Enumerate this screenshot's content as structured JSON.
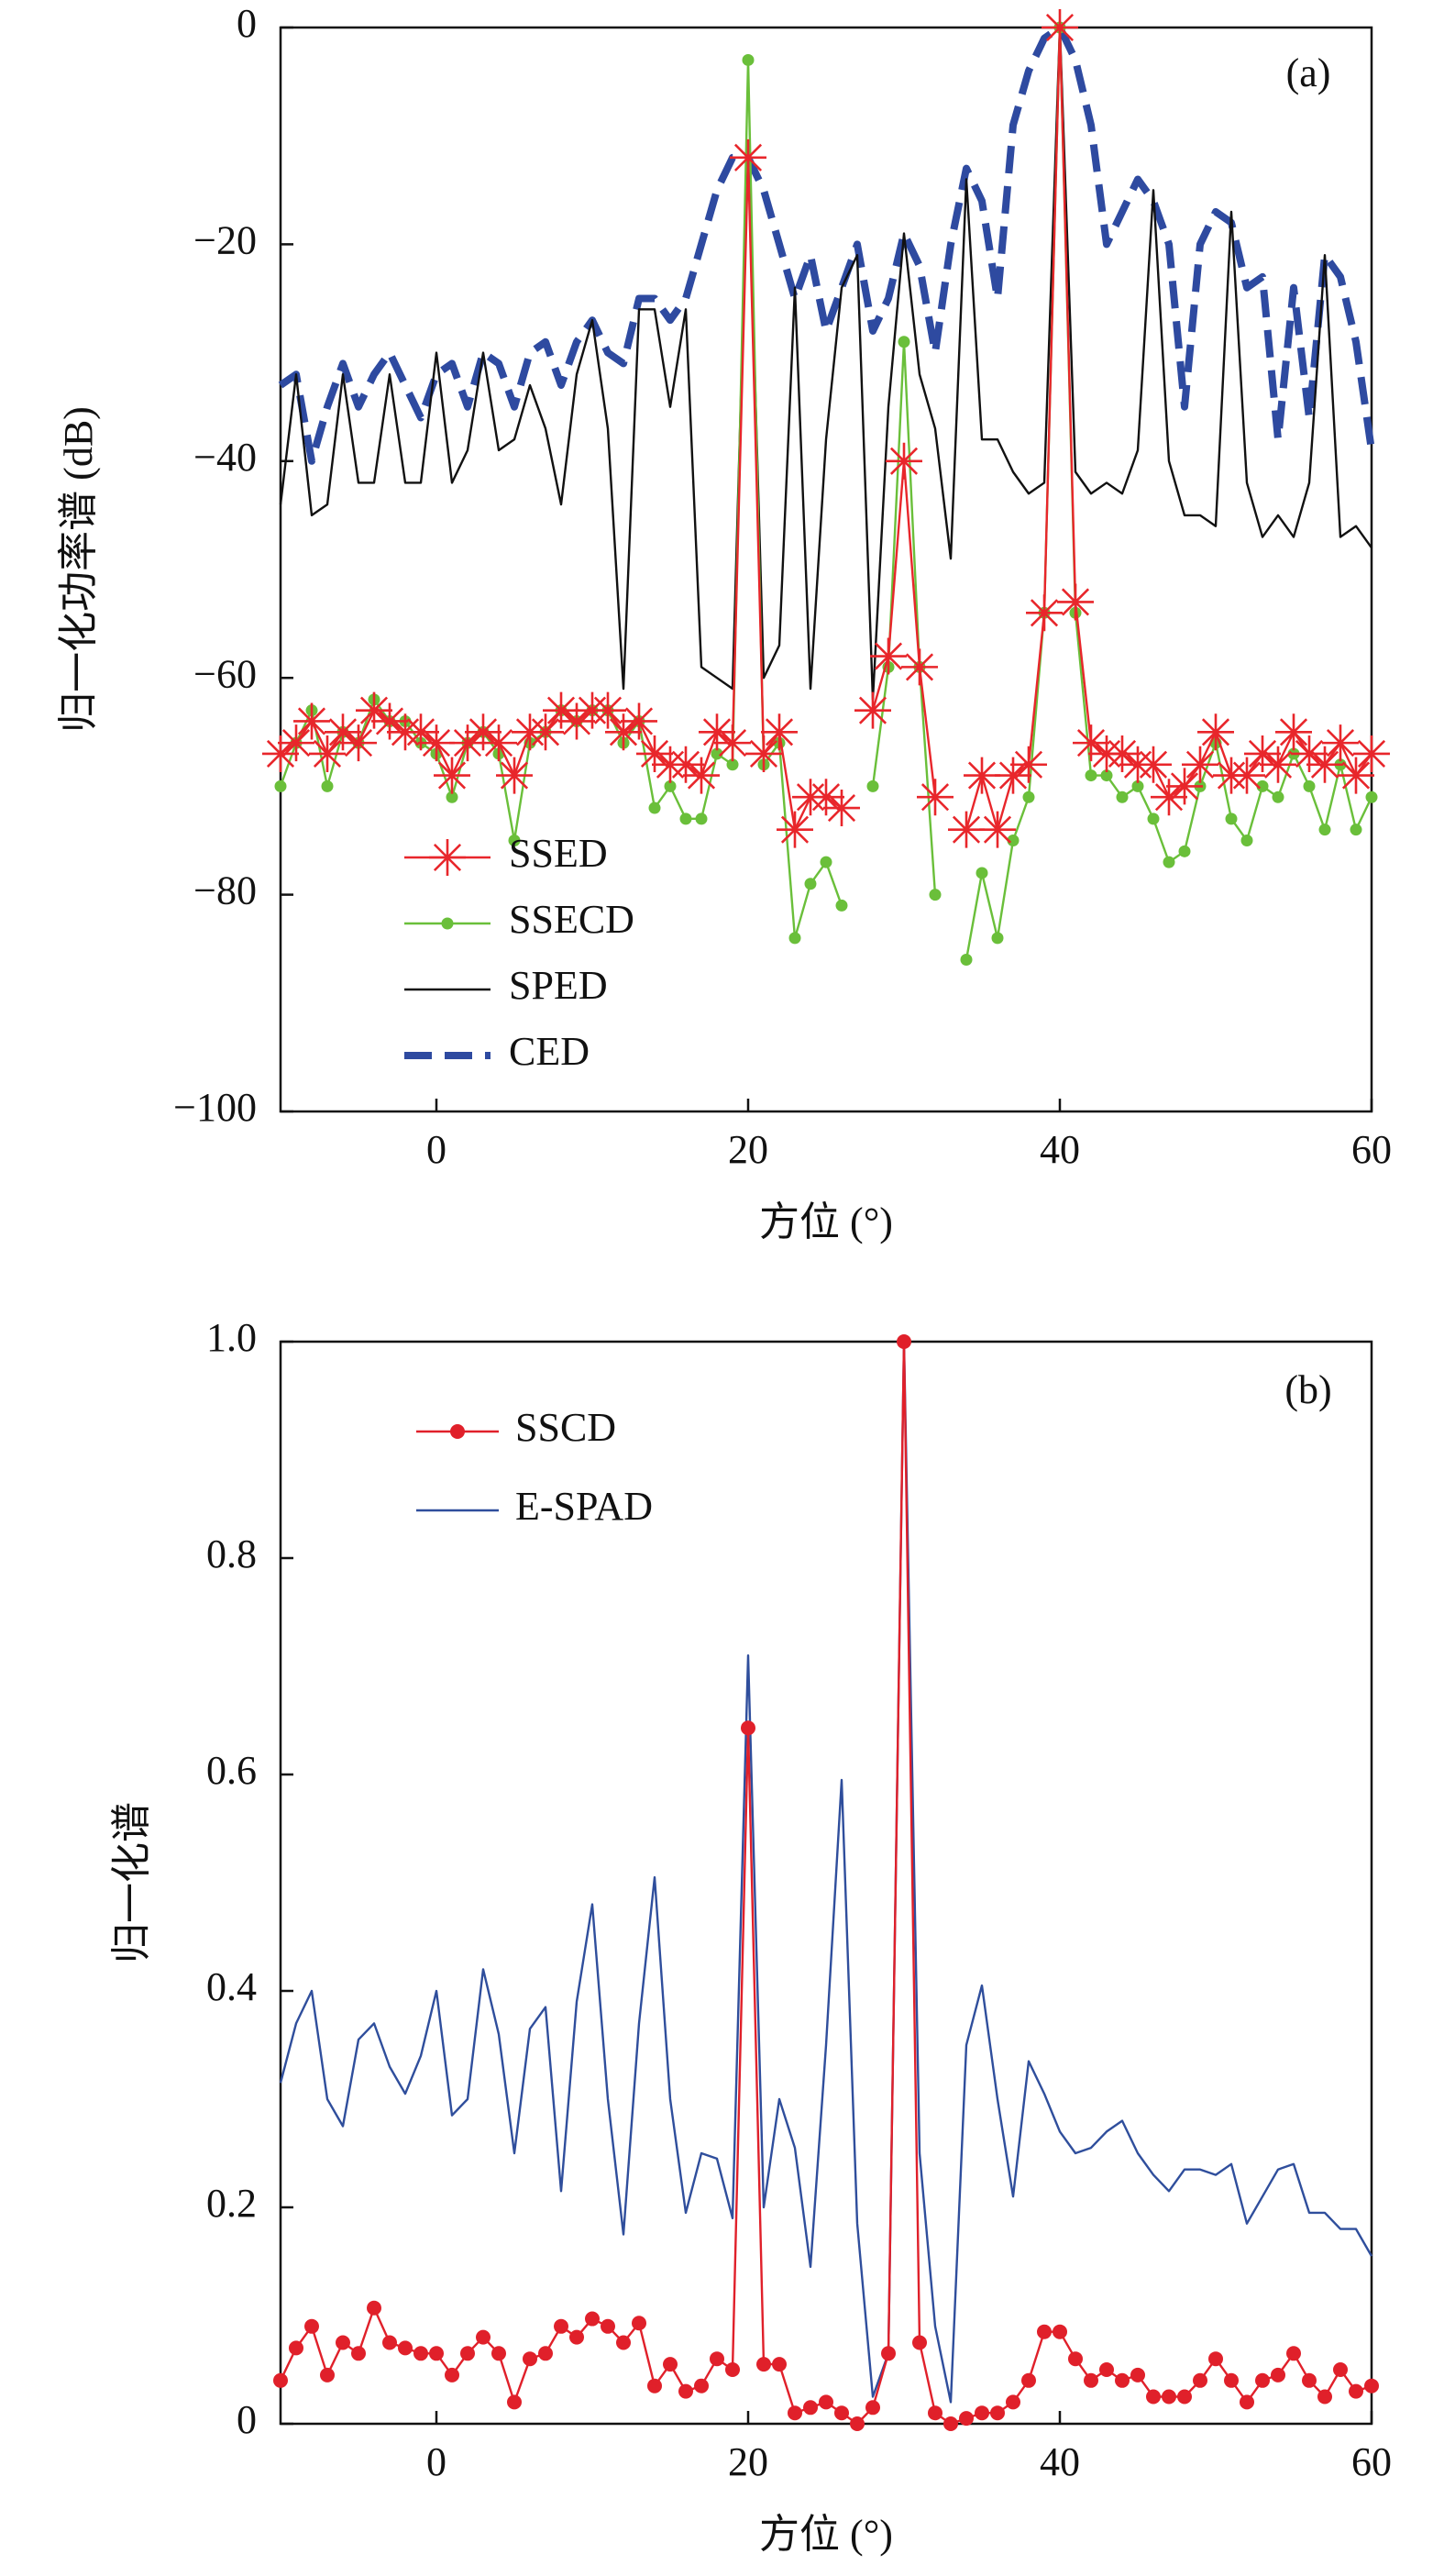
{
  "chart_data": [
    {
      "type": "line",
      "annotation": "(a)",
      "xlabel": "方位 (°)",
      "ylabel": "归一化功率谱 (dB)",
      "x": [
        -10,
        -9,
        -8,
        -7,
        -6,
        -5,
        -4,
        -3,
        -2,
        -1,
        0,
        1,
        2,
        3,
        4,
        5,
        6,
        7,
        8,
        9,
        10,
        11,
        12,
        13,
        14,
        15,
        16,
        17,
        18,
        19,
        20,
        21,
        22,
        23,
        24,
        25,
        26,
        27,
        28,
        29,
        30,
        31,
        32,
        33,
        34,
        35,
        36,
        37,
        38,
        39,
        40,
        41,
        42,
        43,
        44,
        45,
        46,
        47,
        48,
        49,
        50,
        51,
        52,
        53,
        54,
        55,
        56,
        57,
        58,
        59,
        60
      ],
      "xlim": [
        -10,
        60
      ],
      "xticks": [
        0,
        20,
        40,
        60
      ],
      "ylim": [
        -100,
        0
      ],
      "yticks": [
        {
          "value": -100,
          "label": "−100"
        },
        {
          "value": -80,
          "label": "−80"
        },
        {
          "value": -60,
          "label": "−60"
        },
        {
          "value": -40,
          "label": "−40"
        },
        {
          "value": -20,
          "label": "−20"
        },
        0
      ],
      "legend": "lower left",
      "series": [
        {
          "name": "SSED",
          "color": "#e8262b",
          "marker": "star",
          "linestyle": "solid",
          "values": [
            -67,
            -66,
            -64,
            -67,
            -65,
            -66,
            -63,
            -64,
            -65,
            -65,
            -66,
            -69,
            -66,
            -65,
            -66,
            -69,
            -65,
            -65,
            -63,
            -64,
            -63,
            -63,
            -65,
            -64,
            -67,
            -68,
            -68,
            -69,
            -65,
            -66,
            -12,
            -67,
            -65,
            -74,
            -71,
            -71,
            -72,
            null,
            -63,
            -58,
            -40,
            -59,
            -71,
            null,
            -74,
            -69,
            -74,
            -69,
            -68,
            -54,
            0,
            -53,
            -66,
            -67,
            -67,
            -68,
            -68,
            -71,
            -70,
            -68,
            -65,
            -69,
            -69,
            -67,
            -68,
            -65,
            -67,
            -68,
            -66,
            -69,
            -67
          ]
        },
        {
          "name": "SSECD",
          "color": "#6abf3a",
          "marker": "circle",
          "linestyle": "solid",
          "values": [
            -70,
            -66,
            -63,
            -70,
            -65,
            -66,
            -62,
            -64,
            -64,
            -66,
            -67,
            -71,
            -66,
            -65,
            -67,
            -75,
            -66,
            -65,
            -63,
            -64,
            -63,
            -63,
            -66,
            -64,
            -72,
            -70,
            -73,
            -73,
            -67,
            -68,
            -3,
            -68,
            -66,
            -84,
            -79,
            -77,
            -81,
            null,
            -70,
            -59,
            -29,
            -59,
            -80,
            null,
            -86,
            -78,
            -84,
            -75,
            -71,
            -54,
            0,
            -54,
            -69,
            -69,
            -71,
            -70,
            -73,
            -77,
            -76,
            -70,
            -66,
            -73,
            -75,
            -70,
            -71,
            -67,
            -70,
            -74,
            -68,
            -74,
            -71
          ]
        },
        {
          "name": "SPED",
          "color": "#111111",
          "marker": null,
          "linestyle": "solid",
          "values": [
            -44,
            -32,
            -45,
            -44,
            -32,
            -42,
            -42,
            -32,
            -42,
            -42,
            -30,
            -42,
            -39,
            -30,
            -39,
            -38,
            -33,
            -37,
            -44,
            -32,
            -27,
            -37,
            -61,
            -26,
            -26,
            -35,
            -26,
            -59,
            -60,
            -61,
            -11,
            -60,
            -57,
            -24,
            -61,
            -38,
            -24,
            -21,
            -62,
            -35,
            -19,
            -32,
            -37,
            -49,
            -14,
            -38,
            -38,
            -41,
            -43,
            -42,
            0,
            -41,
            -43,
            -42,
            -43,
            -39,
            -15,
            -40,
            -45,
            -45,
            -46,
            -17,
            -42,
            -47,
            -45,
            -47,
            -42,
            -21,
            -47,
            -46,
            -48
          ]
        },
        {
          "name": "CED",
          "color": "#2e4aa0",
          "marker": null,
          "linestyle": "dashed",
          "values": [
            -33,
            -32,
            -40,
            -35,
            -31,
            -35,
            -32,
            -30,
            -33,
            -36,
            -32,
            -31,
            -35,
            -30,
            -31,
            -35,
            -30,
            -29,
            -33,
            -29,
            -27,
            -30,
            -31,
            -25,
            -25,
            -27,
            -25,
            -20,
            -15,
            -12,
            -12,
            -15,
            -20,
            -25,
            -21,
            -28,
            -24,
            -20,
            -28,
            -25,
            -19,
            -22,
            -30,
            -20,
            -13,
            -16,
            -25,
            -9,
            -4,
            -1,
            0,
            -3,
            -9,
            -20,
            -17,
            -14,
            -16,
            -20,
            -35,
            -20,
            -17,
            -18,
            -24,
            -23,
            -38,
            -24,
            -36,
            -21,
            -23,
            -29,
            -39
          ]
        }
      ]
    },
    {
      "type": "line",
      "annotation": "(b)",
      "xlabel": "方位 (°)",
      "ylabel": "归一化谱",
      "x": [
        -10,
        -9,
        -8,
        -7,
        -6,
        -5,
        -4,
        -3,
        -2,
        -1,
        0,
        1,
        2,
        3,
        4,
        5,
        6,
        7,
        8,
        9,
        10,
        11,
        12,
        13,
        14,
        15,
        16,
        17,
        18,
        19,
        20,
        21,
        22,
        23,
        24,
        25,
        26,
        27,
        28,
        29,
        30,
        31,
        32,
        33,
        34,
        35,
        36,
        37,
        38,
        39,
        40,
        41,
        42,
        43,
        44,
        45,
        46,
        47,
        48,
        49,
        50,
        51,
        52,
        53,
        54,
        55,
        56,
        57,
        58,
        59,
        60
      ],
      "xlim": [
        -10,
        60
      ],
      "xticks": [
        0,
        20,
        40,
        60
      ],
      "ylim": [
        0,
        1
      ],
      "yticks": [
        0,
        0.2,
        0.4,
        0.6,
        0.8,
        {
          "value": 1,
          "label": "1.0"
        }
      ],
      "legend": "upper left",
      "series": [
        {
          "name": "SSCD",
          "color": "#e0202a",
          "marker": "circle",
          "linestyle": "solid",
          "values": [
            0.04,
            0.07,
            0.09,
            0.045,
            0.075,
            0.065,
            0.107,
            0.075,
            0.07,
            0.065,
            0.065,
            0.045,
            0.065,
            0.08,
            0.065,
            0.02,
            0.06,
            0.065,
            0.09,
            0.08,
            0.097,
            0.09,
            0.075,
            0.093,
            0.035,
            0.055,
            0.03,
            0.035,
            0.06,
            0.05,
            0.643,
            0.055,
            0.055,
            0.01,
            0.015,
            0.02,
            0.01,
            0,
            0.015,
            0.065,
            1,
            0.075,
            0.01,
            0,
            0.005,
            0.01,
            0.01,
            0.02,
            0.04,
            0.085,
            0.085,
            0.06,
            0.04,
            0.05,
            0.04,
            0.045,
            0.025,
            0.025,
            0.025,
            0.04,
            0.06,
            0.04,
            0.02,
            0.04,
            0.045,
            0.065,
            0.04,
            0.025,
            0.05,
            0.03,
            0.035
          ]
        },
        {
          "name": "E-SPAD",
          "color": "#2f4e9c",
          "marker": null,
          "linestyle": "solid",
          "values": [
            0.315,
            0.37,
            0.4,
            0.3,
            0.275,
            0.355,
            0.37,
            0.33,
            0.305,
            0.34,
            0.4,
            0.285,
            0.3,
            0.42,
            0.36,
            0.25,
            0.365,
            0.385,
            0.215,
            0.39,
            0.48,
            0.3,
            0.175,
            0.37,
            0.505,
            0.3,
            0.195,
            0.25,
            0.245,
            0.19,
            0.71,
            0.2,
            0.3,
            0.255,
            0.145,
            0.35,
            0.595,
            0.185,
            0.025,
            0.065,
            1,
            0.25,
            0.09,
            0.02,
            0.35,
            0.405,
            0.3,
            0.21,
            0.335,
            0.305,
            0.27,
            0.25,
            0.255,
            0.27,
            0.28,
            0.25,
            0.23,
            0.215,
            0.235,
            0.235,
            0.23,
            0.24,
            0.185,
            0.21,
            0.235,
            0.24,
            0.195,
            0.195,
            0.18,
            0.18,
            0.155
          ]
        }
      ]
    }
  ]
}
